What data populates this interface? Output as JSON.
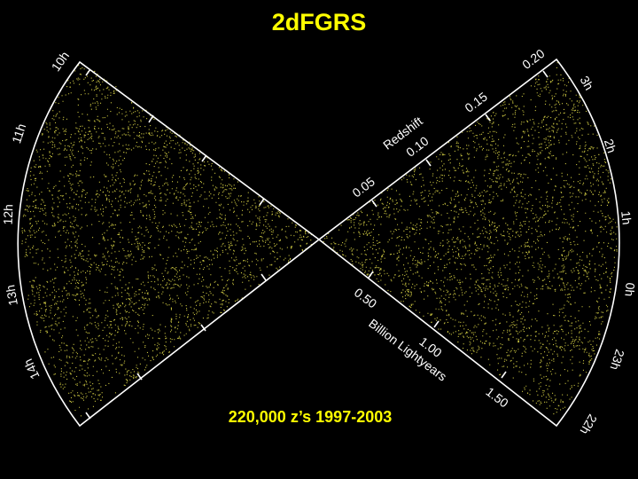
{
  "title": "2dFGRS",
  "caption": "220,000 z’s 1997-2003",
  "colors": {
    "background": "#000000",
    "galaxies": "#e8e24a",
    "title": "#ffff00",
    "frame": "#ffffff"
  },
  "redshift_axis": {
    "label": "Redshift",
    "ticks": [
      "0.05",
      "0.10",
      "0.15",
      "0.20"
    ]
  },
  "distance_axis": {
    "label": "Billion Lightyears",
    "ticks": [
      "0.50",
      "1.00",
      "1.50"
    ]
  },
  "left_hours": [
    "10h",
    "11h",
    "12h",
    "13h",
    "14h"
  ],
  "right_hours": [
    "3h",
    "2h",
    "1h",
    "0h",
    "23h",
    "22h"
  ]
}
